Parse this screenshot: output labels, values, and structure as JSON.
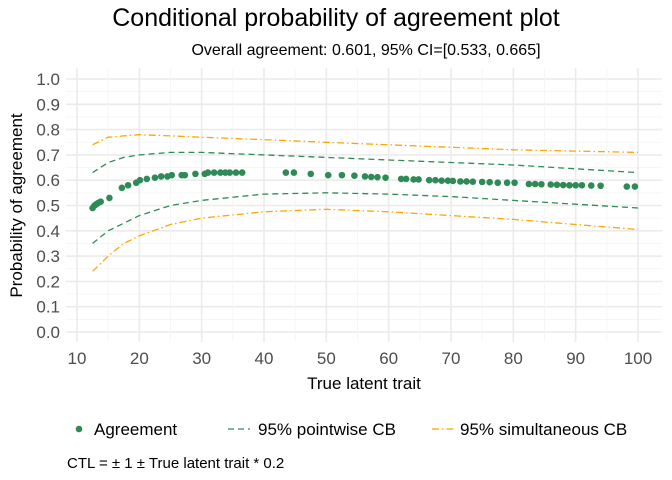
{
  "chart_data": {
    "type": "line",
    "title": "Conditional probability of agreement plot",
    "subtitle": "Overall agreement: 0.601, 95% CI=[0.533, 0.665]",
    "xlabel": "True latent trait",
    "ylabel": "Probability of agreement",
    "caption": "CTL = ± 1 ± True latent trait * 0.2",
    "xlim": [
      10,
      100
    ],
    "ylim": [
      0,
      1
    ],
    "xticks": [
      "10",
      "20",
      "30",
      "40",
      "50",
      "60",
      "70",
      "80",
      "90",
      "100"
    ],
    "yticks": [
      "0.0",
      "0.1",
      "0.2",
      "0.3",
      "0.4",
      "0.5",
      "0.6",
      "0.7",
      "0.8",
      "0.9",
      "1.0"
    ],
    "grid": true,
    "legend_position": "bottom",
    "colors": {
      "agreement": "#2e8b57",
      "pointwise": "#2e8b57",
      "simultaneous": "#ffa500"
    },
    "series": [
      {
        "name": "Agreement",
        "kind": "points",
        "x": [
          12.5,
          12.8,
          13.1,
          13.4,
          13.8,
          15.2,
          17.2,
          18.2,
          19.5,
          20.1,
          21.2,
          22.5,
          23.5,
          24.5,
          25.2,
          26.8,
          27.3,
          29.0,
          30.5,
          31.0,
          32.0,
          33.0,
          33.8,
          34.5,
          35.5,
          36.5,
          43.5,
          44.8,
          47.5,
          50.3,
          52.5,
          54.5,
          56.2,
          57.2,
          58.2,
          59.5,
          62.0,
          62.8,
          64.0,
          64.8,
          66.5,
          67.5,
          68.5,
          69.5,
          70.3,
          71.5,
          72.5,
          73.5,
          75.0,
          76.2,
          77.5,
          79.0,
          80.2,
          82.5,
          83.5,
          84.5,
          86.0,
          87.0,
          88.0,
          89.0,
          90.0,
          91.0,
          92.5,
          94.0,
          98.2,
          99.5
        ],
        "y": [
          0.49,
          0.5,
          0.505,
          0.51,
          0.515,
          0.53,
          0.57,
          0.58,
          0.59,
          0.6,
          0.605,
          0.61,
          0.615,
          0.615,
          0.62,
          0.62,
          0.62,
          0.625,
          0.625,
          0.63,
          0.63,
          0.63,
          0.63,
          0.63,
          0.63,
          0.63,
          0.63,
          0.63,
          0.625,
          0.62,
          0.62,
          0.618,
          0.615,
          0.613,
          0.612,
          0.61,
          0.605,
          0.605,
          0.603,
          0.603,
          0.6,
          0.6,
          0.598,
          0.598,
          0.597,
          0.595,
          0.595,
          0.594,
          0.593,
          0.592,
          0.59,
          0.59,
          0.59,
          0.585,
          0.585,
          0.584,
          0.583,
          0.582,
          0.581,
          0.58,
          0.58,
          0.58,
          0.579,
          0.578,
          0.575,
          0.575
        ]
      },
      {
        "name": "95% pointwise CB",
        "kind": "dashed",
        "x": [
          12.5,
          15,
          17.5,
          20,
          25,
          30,
          40,
          50,
          60,
          70,
          80,
          90,
          100
        ],
        "upper": [
          0.63,
          0.67,
          0.69,
          0.7,
          0.71,
          0.71,
          0.7,
          0.69,
          0.68,
          0.67,
          0.66,
          0.645,
          0.63
        ],
        "lower": [
          0.35,
          0.4,
          0.43,
          0.46,
          0.5,
          0.52,
          0.545,
          0.55,
          0.545,
          0.535,
          0.52,
          0.505,
          0.49
        ]
      },
      {
        "name": "95% simultaneous CB",
        "kind": "dotdash",
        "x": [
          12.5,
          15,
          17.5,
          20,
          25,
          30,
          40,
          50,
          60,
          70,
          80,
          90,
          100
        ],
        "upper": [
          0.74,
          0.77,
          0.775,
          0.78,
          0.775,
          0.77,
          0.76,
          0.75,
          0.74,
          0.73,
          0.72,
          0.715,
          0.71
        ],
        "lower": [
          0.24,
          0.3,
          0.35,
          0.38,
          0.425,
          0.45,
          0.475,
          0.485,
          0.475,
          0.46,
          0.445,
          0.425,
          0.405
        ]
      }
    ]
  }
}
